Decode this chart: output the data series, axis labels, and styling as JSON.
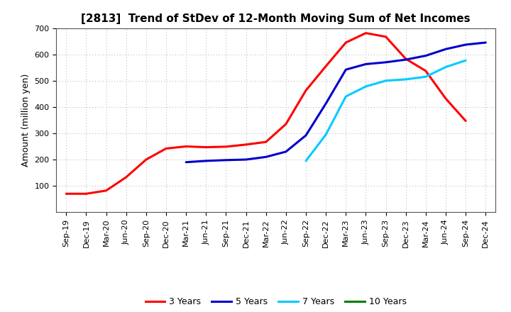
{
  "title": "[2813]  Trend of StDev of 12-Month Moving Sum of Net Incomes",
  "ylabel": "Amount (million yen)",
  "background_color": "#ffffff",
  "grid_color": "#aaaaaa",
  "ylim": [
    0,
    700
  ],
  "yticks": [
    100,
    200,
    300,
    400,
    500,
    600,
    700
  ],
  "x_labels": [
    "Sep-19",
    "Dec-19",
    "Mar-20",
    "Jun-20",
    "Sep-20",
    "Dec-20",
    "Mar-21",
    "Jun-21",
    "Sep-21",
    "Dec-21",
    "Mar-22",
    "Jun-22",
    "Sep-22",
    "Dec-22",
    "Mar-23",
    "Jun-23",
    "Sep-23",
    "Dec-23",
    "Mar-24",
    "Jun-24",
    "Sep-24",
    "Dec-24"
  ],
  "series": {
    "3 Years": {
      "color": "#ff0000",
      "values": [
        70,
        70,
        82,
        133,
        200,
        242,
        250,
        247,
        249,
        257,
        267,
        335,
        463,
        555,
        645,
        681,
        667,
        583,
        537,
        432,
        347,
        null
      ]
    },
    "5 Years": {
      "color": "#0000cc",
      "values": [
        null,
        null,
        null,
        null,
        null,
        null,
        190,
        195,
        198,
        200,
        210,
        230,
        292,
        413,
        542,
        563,
        570,
        580,
        595,
        620,
        637,
        645
      ]
    },
    "7 Years": {
      "color": "#00ccff",
      "values": [
        null,
        null,
        null,
        null,
        null,
        null,
        null,
        null,
        null,
        null,
        null,
        null,
        195,
        295,
        440,
        478,
        500,
        505,
        515,
        552,
        577,
        null
      ]
    },
    "10 Years": {
      "color": "#008000",
      "values": [
        null,
        null,
        null,
        null,
        null,
        null,
        null,
        null,
        null,
        null,
        null,
        null,
        null,
        null,
        null,
        null,
        null,
        null,
        null,
        null,
        null,
        null
      ]
    }
  },
  "legend_order": [
    "3 Years",
    "5 Years",
    "7 Years",
    "10 Years"
  ],
  "title_fontsize": 11,
  "ylabel_fontsize": 9,
  "tick_fontsize": 8,
  "linewidth": 2.2
}
